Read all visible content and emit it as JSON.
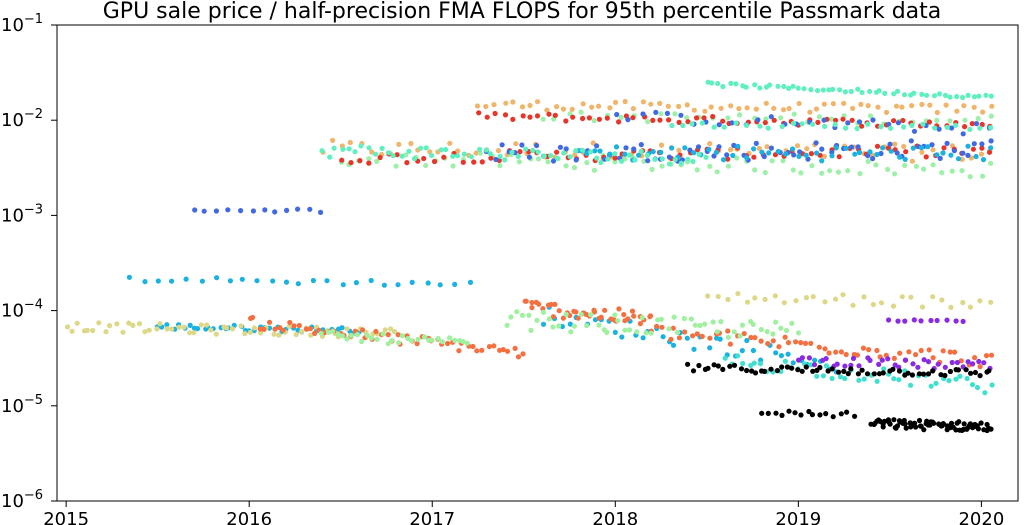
{
  "chart_data": {
    "type": "scatter",
    "title": "GPU sale price / half-precision FMA FLOPS for 95th percentile Passmark data",
    "xlabel": "",
    "ylabel": "",
    "y_scale": "log",
    "xlim": [
      2014.95,
      2020.2
    ],
    "ylim": [
      1e-06,
      0.1
    ],
    "x_ticks": [
      {
        "value": 2015,
        "label": "2015"
      },
      {
        "value": 2016,
        "label": "2016"
      },
      {
        "value": 2017,
        "label": "2017"
      },
      {
        "value": 2018,
        "label": "2018"
      },
      {
        "value": 2019,
        "label": "2019"
      },
      {
        "value": 2020,
        "label": "2020"
      }
    ],
    "y_ticks": [
      {
        "value": 0.1,
        "base": "10",
        "exp": "−1"
      },
      {
        "value": 0.01,
        "base": "10",
        "exp": "−2"
      },
      {
        "value": 0.001,
        "base": "10",
        "exp": "−3"
      },
      {
        "value": 0.0001,
        "base": "10",
        "exp": "−4"
      },
      {
        "value": 1e-05,
        "base": "10",
        "exp": "−5"
      },
      {
        "value": 1e-06,
        "base": "10",
        "exp": "−6"
      }
    ],
    "grid": false,
    "legend": "none",
    "series": [
      {
        "color": "#f0b46a",
        "segments": [
          {
            "x0": 2016.4,
            "x1": 2020.05,
            "y0": 0.005,
            "y1": 0.0045,
            "n": 70,
            "spread": 0.09
          },
          {
            "x0": 2017.25,
            "x1": 2020.05,
            "y0": 0.0145,
            "y1": 0.013,
            "n": 60,
            "spread": 0.05
          }
        ]
      },
      {
        "color": "#9ef0a8",
        "segments": [
          {
            "x0": 2016.5,
            "x1": 2020.05,
            "y0": 0.004,
            "y1": 0.003,
            "n": 70,
            "spread": 0.08
          },
          {
            "x0": 2017.6,
            "x1": 2020.05,
            "y0": 0.011,
            "y1": 0.01,
            "n": 35,
            "spread": 0.05
          }
        ]
      },
      {
        "color": "#e8352a",
        "segments": [
          {
            "x0": 2016.5,
            "x1": 2020.05,
            "y0": 0.004,
            "y1": 0.0048,
            "n": 70,
            "spread": 0.06
          },
          {
            "x0": 2017.25,
            "x1": 2020.05,
            "y0": 0.011,
            "y1": 0.009,
            "n": 60,
            "spread": 0.04
          }
        ]
      },
      {
        "color": "#4169e1",
        "segments": [
          {
            "x0": 2017.3,
            "x1": 2020.05,
            "y0": 0.0045,
            "y1": 0.005,
            "n": 70,
            "spread": 0.1
          },
          {
            "x0": 2015.7,
            "x1": 2016.4,
            "y0": 0.00115,
            "y1": 0.00112,
            "n": 12,
            "spread": 0.02
          },
          {
            "x0": 2018.0,
            "x1": 2020.05,
            "y0": 0.011,
            "y1": 0.008,
            "n": 30,
            "spread": 0.06
          }
        ]
      },
      {
        "color": "#1ab2e0",
        "segments": [
          {
            "x0": 2017.8,
            "x1": 2020.05,
            "y0": 0.0045,
            "y1": 0.0045,
            "n": 55,
            "spread": 0.08
          },
          {
            "x0": 2015.35,
            "x1": 2017.2,
            "y0": 0.000215,
            "y1": 0.00019,
            "n": 25,
            "spread": 0.03
          },
          {
            "x0": 2015.5,
            "x1": 2016.6,
            "y0": 6.8e-05,
            "y1": 6.2e-05,
            "n": 40,
            "spread": 0.03
          },
          {
            "x0": 2017.6,
            "x1": 2019.2,
            "y0": 9e-05,
            "y1": 2.8e-05,
            "n": 45,
            "spread": 0.1
          }
        ]
      },
      {
        "color": "#60f0c0",
        "segments": [
          {
            "x0": 2018.5,
            "x1": 2020.05,
            "y0": 0.024,
            "y1": 0.0175,
            "n": 50,
            "spread": 0.02
          },
          {
            "x0": 2016.4,
            "x1": 2018.5,
            "y0": 0.0048,
            "y1": 0.004,
            "n": 60,
            "spread": 0.07
          },
          {
            "x0": 2018.3,
            "x1": 2020.05,
            "y0": 0.009,
            "y1": 0.0085,
            "n": 30,
            "spread": 0.03
          }
        ]
      },
      {
        "color": "#ddd888",
        "segments": [
          {
            "x0": 2015.0,
            "x1": 2016.8,
            "y0": 6.8e-05,
            "y1": 5.8e-05,
            "n": 60,
            "spread": 0.05
          },
          {
            "x0": 2018.5,
            "x1": 2020.05,
            "y0": 0.00014,
            "y1": 0.00012,
            "n": 30,
            "spread": 0.06
          }
        ]
      },
      {
        "color": "#f57040",
        "segments": [
          {
            "x0": 2016.0,
            "x1": 2017.5,
            "y0": 7.5e-05,
            "y1": 3.6e-05,
            "n": 55,
            "spread": 0.06
          },
          {
            "x0": 2017.5,
            "x1": 2018.2,
            "y0": 0.00011,
            "y1": 8e-05,
            "n": 40,
            "spread": 0.08
          },
          {
            "x0": 2018.2,
            "x1": 2020.05,
            "y0": 6e-05,
            "y1": 3e-05,
            "n": 60,
            "spread": 0.08
          }
        ]
      },
      {
        "color": "#a0f0a0",
        "segments": [
          {
            "x0": 2016.4,
            "x1": 2017.2,
            "y0": 5.5e-05,
            "y1": 4.5e-05,
            "n": 30,
            "spread": 0.05
          },
          {
            "x0": 2017.4,
            "x1": 2019.0,
            "y0": 8e-05,
            "y1": 6e-05,
            "n": 55,
            "spread": 0.1
          }
        ]
      },
      {
        "color": "#40e0d0",
        "segments": [
          {
            "x0": 2018.6,
            "x1": 2020.05,
            "y0": 3e-05,
            "y1": 1.6e-05,
            "n": 45,
            "spread": 0.08
          }
        ]
      },
      {
        "color": "#8a2be2",
        "segments": [
          {
            "x0": 2019.0,
            "x1": 2020.05,
            "y0": 3e-05,
            "y1": 2.6e-05,
            "n": 35,
            "spread": 0.05
          },
          {
            "x0": 2019.5,
            "x1": 2019.9,
            "y0": 7.8e-05,
            "y1": 7.8e-05,
            "n": 10,
            "spread": 0.01
          }
        ]
      },
      {
        "color": "#000000",
        "segments": [
          {
            "x0": 2018.4,
            "x1": 2020.05,
            "y0": 2.5e-05,
            "y1": 2.2e-05,
            "n": 60,
            "spread": 0.04
          },
          {
            "x0": 2018.8,
            "x1": 2019.3,
            "y0": 8.5e-06,
            "y1": 8e-06,
            "n": 15,
            "spread": 0.03
          },
          {
            "x0": 2019.4,
            "x1": 2020.05,
            "y0": 6.5e-06,
            "y1": 6e-06,
            "n": 70,
            "spread": 0.05
          }
        ]
      }
    ]
  }
}
